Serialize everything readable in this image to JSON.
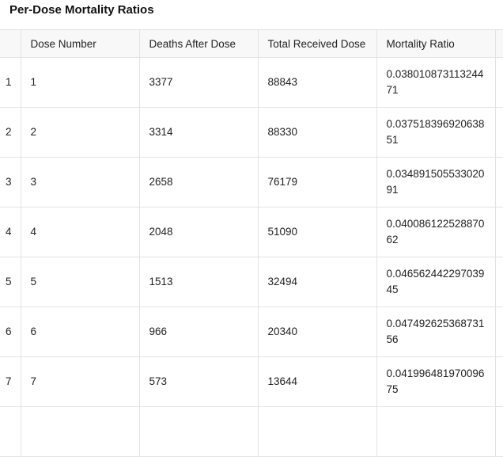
{
  "title": "Per-Dose Mortality Ratios",
  "columns": [
    "",
    "Dose Number",
    "Deaths After Dose",
    "Total Received Dose",
    "Mortality Ratio"
  ],
  "rows": [
    {
      "index": "1",
      "dose": "1",
      "deaths": "3377",
      "total": "88843",
      "ratio": "0.03801087311324471"
    },
    {
      "index": "2",
      "dose": "2",
      "deaths": "3314",
      "total": "88330",
      "ratio": "0.03751839692063851"
    },
    {
      "index": "3",
      "dose": "3",
      "deaths": "2658",
      "total": "76179",
      "ratio": "0.03489150553302091"
    },
    {
      "index": "4",
      "dose": "4",
      "deaths": "2048",
      "total": "51090",
      "ratio": "0.04008612252887062"
    },
    {
      "index": "5",
      "dose": "5",
      "deaths": "1513",
      "total": "32494",
      "ratio": "0.04656244229703945"
    },
    {
      "index": "6",
      "dose": "6",
      "deaths": "966",
      "total": "20340",
      "ratio": "0.04749262536873156"
    },
    {
      "index": "7",
      "dose": "7",
      "deaths": "573",
      "total": "13644",
      "ratio": "0.04199648197009675"
    }
  ]
}
